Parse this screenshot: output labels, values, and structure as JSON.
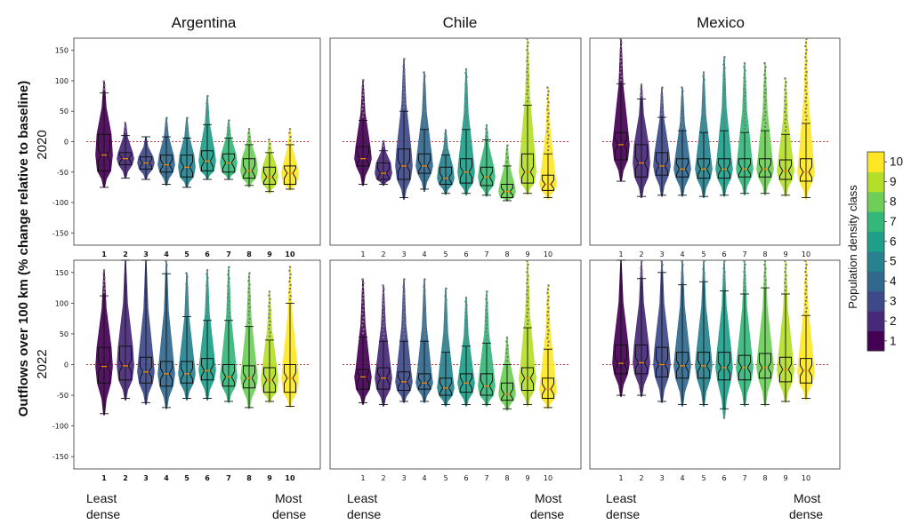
{
  "figure": {
    "y_axis_label": "Outflows over 100 km (% change relative to baseline)",
    "row_labels": [
      "2020",
      "2022"
    ],
    "least_label": [
      "Least",
      "dense"
    ],
    "most_label": [
      "Most",
      "dense"
    ]
  },
  "colorbar": {
    "title": "Population density class",
    "levels": [
      "1",
      "2",
      "3",
      "4",
      "5",
      "6",
      "7",
      "8",
      "9",
      "10"
    ],
    "colors": [
      "#440154",
      "#482878",
      "#3e4989",
      "#31688e",
      "#26828e",
      "#1f9e89",
      "#35b779",
      "#6ece58",
      "#b5de2b",
      "#fde725"
    ]
  },
  "chart_data": [
    {
      "type": "violin-box",
      "country": "Argentina",
      "year": "2020",
      "title": "Argentina",
      "ylim": [
        -170,
        170
      ],
      "yticks": [
        150,
        100,
        50,
        0,
        -50,
        -100,
        -150
      ],
      "baseline": 0,
      "categories": [
        "1",
        "2",
        "3",
        "4",
        "5",
        "6",
        "7",
        "8",
        "9",
        "10"
      ],
      "bold_category_labels": true,
      "boxes": [
        {
          "q1": -48,
          "median": -22,
          "q3": 12,
          "wlo": -75,
          "whi": 80,
          "vmin": -75,
          "vmax": 100
        },
        {
          "q1": -38,
          "median": -28,
          "q3": -18,
          "wlo": -60,
          "whi": 10,
          "vmin": -60,
          "vmax": 32
        },
        {
          "q1": -45,
          "median": -35,
          "q3": -25,
          "wlo": -62,
          "whi": 8,
          "vmin": -62,
          "vmax": 8
        },
        {
          "q1": -50,
          "median": -38,
          "q3": -22,
          "wlo": -70,
          "whi": 8,
          "vmin": -72,
          "vmax": 40
        },
        {
          "q1": -58,
          "median": -42,
          "q3": -22,
          "wlo": -75,
          "whi": 6,
          "vmin": -75,
          "vmax": 40
        },
        {
          "q1": -48,
          "median": -32,
          "q3": -15,
          "wlo": -62,
          "whi": 28,
          "vmin": -62,
          "vmax": 76
        },
        {
          "q1": -50,
          "median": -35,
          "q3": -20,
          "wlo": -62,
          "whi": 6,
          "vmin": -62,
          "vmax": 36
        },
        {
          "q1": -60,
          "median": -48,
          "q3": -28,
          "wlo": -72,
          "whi": -5,
          "vmin": -75,
          "vmax": 22
        },
        {
          "q1": -70,
          "median": -58,
          "q3": -42,
          "wlo": -82,
          "whi": -18,
          "vmin": -85,
          "vmax": 5
        },
        {
          "q1": -70,
          "median": -52,
          "q3": -40,
          "wlo": -78,
          "whi": -5,
          "vmin": -80,
          "vmax": 22
        }
      ]
    },
    {
      "type": "violin-box",
      "country": "Chile",
      "year": "2020",
      "title": "Chile",
      "ylim": [
        -170,
        170
      ],
      "yticks": [],
      "baseline": 0,
      "categories": [
        "1",
        "2",
        "3",
        "4",
        "5",
        "6",
        "7",
        "8",
        "9",
        "10"
      ],
      "bold_category_labels": false,
      "boxes": [
        {
          "q1": -40,
          "median": -28,
          "q3": -8,
          "wlo": -70,
          "whi": 35,
          "vmin": -72,
          "vmax": 102
        },
        {
          "q1": -62,
          "median": -52,
          "q3": -35,
          "wlo": -70,
          "whi": -15,
          "vmin": -72,
          "vmax": 2
        },
        {
          "q1": -62,
          "median": -40,
          "q3": -12,
          "wlo": -92,
          "whi": 50,
          "vmin": -95,
          "vmax": 137
        },
        {
          "q1": -52,
          "median": -40,
          "q3": -20,
          "wlo": -78,
          "whi": 20,
          "vmin": -82,
          "vmax": 115
        },
        {
          "q1": -70,
          "median": -60,
          "q3": -42,
          "wlo": -85,
          "whi": -22,
          "vmin": -87,
          "vmax": 20
        },
        {
          "q1": -68,
          "median": -50,
          "q3": -28,
          "wlo": -85,
          "whi": 20,
          "vmin": -88,
          "vmax": 120
        },
        {
          "q1": -72,
          "median": -58,
          "q3": -42,
          "wlo": -88,
          "whi": 3,
          "vmin": -90,
          "vmax": 28
        },
        {
          "q1": -92,
          "median": -82,
          "q3": -70,
          "wlo": -97,
          "whi": -40,
          "vmin": -97,
          "vmax": -5
        },
        {
          "q1": -68,
          "median": -50,
          "q3": -20,
          "wlo": -85,
          "whi": 60,
          "vmin": -87,
          "vmax": 170
        },
        {
          "q1": -80,
          "median": -70,
          "q3": -55,
          "wlo": -92,
          "whi": -20,
          "vmin": -95,
          "vmax": 90
        }
      ]
    },
    {
      "type": "violin-box",
      "country": "Mexico",
      "year": "2020",
      "title": "Mexico",
      "ylim": [
        -170,
        170
      ],
      "yticks": [],
      "baseline": 0,
      "categories": [
        "1",
        "2",
        "3",
        "4",
        "5",
        "6",
        "7",
        "8",
        "9",
        "10"
      ],
      "bold_category_labels": false,
      "boxes": [
        {
          "q1": -30,
          "median": -5,
          "q3": 15,
          "wlo": -65,
          "whi": 95,
          "vmin": -65,
          "vmax": 170
        },
        {
          "q1": -58,
          "median": -35,
          "q3": -5,
          "wlo": -90,
          "whi": 70,
          "vmin": -92,
          "vmax": 95
        },
        {
          "q1": -55,
          "median": -40,
          "q3": -18,
          "wlo": -88,
          "whi": 40,
          "vmin": -90,
          "vmax": 90
        },
        {
          "q1": -58,
          "median": -45,
          "q3": -28,
          "wlo": -88,
          "whi": 18,
          "vmin": -90,
          "vmax": 90
        },
        {
          "q1": -60,
          "median": -45,
          "q3": -28,
          "wlo": -90,
          "whi": 15,
          "vmin": -92,
          "vmax": 115
        },
        {
          "q1": -60,
          "median": -45,
          "q3": -28,
          "wlo": -88,
          "whi": 18,
          "vmin": -90,
          "vmax": 140
        },
        {
          "q1": -58,
          "median": -45,
          "q3": -28,
          "wlo": -85,
          "whi": 15,
          "vmin": -88,
          "vmax": 130
        },
        {
          "q1": -58,
          "median": -45,
          "q3": -28,
          "wlo": -85,
          "whi": 18,
          "vmin": -88,
          "vmax": 130
        },
        {
          "q1": -62,
          "median": -48,
          "q3": -30,
          "wlo": -88,
          "whi": 12,
          "vmin": -90,
          "vmax": 105
        },
        {
          "q1": -65,
          "median": -50,
          "q3": -28,
          "wlo": -92,
          "whi": 30,
          "vmin": -95,
          "vmax": 170
        }
      ]
    },
    {
      "type": "violin-box",
      "country": "Argentina",
      "year": "2022",
      "ylim": [
        -170,
        170
      ],
      "yticks": [
        150,
        100,
        50,
        0,
        -50,
        -100,
        -150
      ],
      "baseline": 0,
      "categories": [
        "1",
        "2",
        "3",
        "4",
        "5",
        "6",
        "7",
        "8",
        "9",
        "10"
      ],
      "bold_category_labels": true,
      "boxes": [
        {
          "q1": -30,
          "median": -3,
          "q3": 28,
          "wlo": -80,
          "whi": 112,
          "vmin": -82,
          "vmax": 155
        },
        {
          "q1": -25,
          "median": -2,
          "q3": 30,
          "wlo": -55,
          "whi": 170,
          "vmin": -58,
          "vmax": 170
        },
        {
          "q1": -30,
          "median": -12,
          "q3": 12,
          "wlo": -62,
          "whi": 170,
          "vmin": -65,
          "vmax": 170
        },
        {
          "q1": -35,
          "median": -15,
          "q3": 5,
          "wlo": -70,
          "whi": 148,
          "vmin": -72,
          "vmax": 170
        },
        {
          "q1": -30,
          "median": -15,
          "q3": 5,
          "wlo": -55,
          "whi": 78,
          "vmin": -58,
          "vmax": 150
        },
        {
          "q1": -25,
          "median": -10,
          "q3": 10,
          "wlo": -55,
          "whi": 72,
          "vmin": -58,
          "vmax": 155
        },
        {
          "q1": -35,
          "median": -20,
          "q3": 0,
          "wlo": -60,
          "whi": 72,
          "vmin": -62,
          "vmax": 160
        },
        {
          "q1": -38,
          "median": -22,
          "q3": -2,
          "wlo": -70,
          "whi": 62,
          "vmin": -72,
          "vmax": 150
        },
        {
          "q1": -45,
          "median": -25,
          "q3": -5,
          "wlo": -60,
          "whi": 40,
          "vmin": -62,
          "vmax": 120
        },
        {
          "q1": -45,
          "median": -22,
          "q3": 0,
          "wlo": -68,
          "whi": 100,
          "vmin": -70,
          "vmax": 160
        }
      ]
    },
    {
      "type": "violin-box",
      "country": "Chile",
      "year": "2022",
      "ylim": [
        -170,
        170
      ],
      "yticks": [],
      "baseline": 0,
      "categories": [
        "1",
        "2",
        "3",
        "4",
        "5",
        "6",
        "7",
        "8",
        "9",
        "10"
      ],
      "bold_category_labels": false,
      "boxes": [
        {
          "q1": -40,
          "median": -20,
          "q3": -8,
          "wlo": -62,
          "whi": 45,
          "vmin": -65,
          "vmax": 140
        },
        {
          "q1": -40,
          "median": -22,
          "q3": -5,
          "wlo": -65,
          "whi": 38,
          "vmin": -68,
          "vmax": 130
        },
        {
          "q1": -42,
          "median": -28,
          "q3": -12,
          "wlo": -60,
          "whi": 38,
          "vmin": -62,
          "vmax": 140
        },
        {
          "q1": -40,
          "median": -30,
          "q3": -15,
          "wlo": -60,
          "whi": 38,
          "vmin": -62,
          "vmax": 140
        },
        {
          "q1": -50,
          "median": -38,
          "q3": -22,
          "wlo": -65,
          "whi": 20,
          "vmin": -68,
          "vmax": 125
        },
        {
          "q1": -45,
          "median": -30,
          "q3": -15,
          "wlo": -65,
          "whi": 30,
          "vmin": -68,
          "vmax": 110
        },
        {
          "q1": -50,
          "median": -35,
          "q3": -15,
          "wlo": -65,
          "whi": 35,
          "vmin": -68,
          "vmax": 120
        },
        {
          "q1": -58,
          "median": -48,
          "q3": -30,
          "wlo": -72,
          "whi": 0,
          "vmin": -75,
          "vmax": 45
        },
        {
          "q1": -42,
          "median": -22,
          "q3": -5,
          "wlo": -65,
          "whi": 60,
          "vmin": -68,
          "vmax": 170
        },
        {
          "q1": -55,
          "median": -40,
          "q3": -22,
          "wlo": -70,
          "whi": 25,
          "vmin": -72,
          "vmax": 130
        }
      ]
    },
    {
      "type": "violin-box",
      "country": "Mexico",
      "year": "2022",
      "ylim": [
        -170,
        170
      ],
      "yticks": [],
      "baseline": 0,
      "categories": [
        "1",
        "2",
        "3",
        "4",
        "5",
        "6",
        "7",
        "8",
        "9",
        "10"
      ],
      "bold_category_labels": false,
      "boxes": [
        {
          "q1": -15,
          "median": 2,
          "q3": 32,
          "wlo": -50,
          "whi": 170,
          "vmin": -52,
          "vmax": 170
        },
        {
          "q1": -15,
          "median": 3,
          "q3": 32,
          "wlo": -50,
          "whi": 140,
          "vmin": -52,
          "vmax": 170
        },
        {
          "q1": -20,
          "median": 0,
          "q3": 28,
          "wlo": -60,
          "whi": 150,
          "vmin": -62,
          "vmax": 170
        },
        {
          "q1": -22,
          "median": -2,
          "q3": 20,
          "wlo": -65,
          "whi": 130,
          "vmin": -68,
          "vmax": 170
        },
        {
          "q1": -22,
          "median": -2,
          "q3": 20,
          "wlo": -65,
          "whi": 135,
          "vmin": -68,
          "vmax": 170
        },
        {
          "q1": -25,
          "median": -5,
          "q3": 20,
          "wlo": -72,
          "whi": 120,
          "vmin": -88,
          "vmax": 170
        },
        {
          "q1": -25,
          "median": -5,
          "q3": 15,
          "wlo": -65,
          "whi": 115,
          "vmin": -68,
          "vmax": 170
        },
        {
          "q1": -22,
          "median": -5,
          "q3": 18,
          "wlo": -65,
          "whi": 125,
          "vmin": -68,
          "vmax": 170
        },
        {
          "q1": -28,
          "median": -8,
          "q3": 12,
          "wlo": -60,
          "whi": 115,
          "vmin": -62,
          "vmax": 170
        },
        {
          "q1": -30,
          "median": -10,
          "q3": 10,
          "wlo": -55,
          "whi": 80,
          "vmin": -58,
          "vmax": 170
        }
      ]
    }
  ]
}
